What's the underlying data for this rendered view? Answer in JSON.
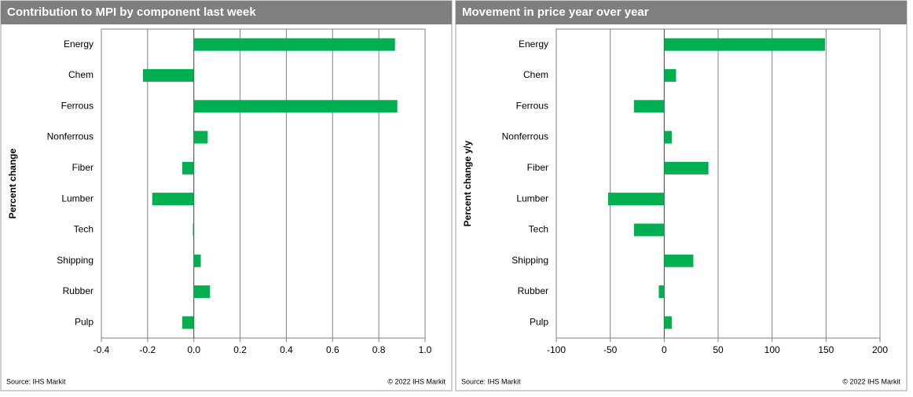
{
  "chart_data": [
    {
      "type": "bar",
      "title": "Contribution to MPI by component last week",
      "y_label": "Percent change",
      "categories": [
        "Energy",
        "Chem",
        "Ferrous",
        "Nonferrous",
        "Fiber",
        "Lumber",
        "Tech",
        "Shipping",
        "Rubber",
        "Pulp"
      ],
      "values": [
        0.87,
        -0.22,
        0.88,
        0.06,
        -0.05,
        -0.18,
        -0.004,
        0.03,
        0.07,
        -0.05
      ],
      "color": "#00b050",
      "xlim": [
        -0.4,
        1.0
      ],
      "xticks": [
        -0.4,
        -0.2,
        {
          "value": 0,
          "label": "0.0"
        },
        0.2,
        0.4,
        0.6,
        0.8,
        {
          "value": 1,
          "label": "1.0"
        }
      ],
      "grid": true,
      "source": "Source:  IHS Markit",
      "copyright": "© 2022  IHS Markit"
    },
    {
      "type": "bar",
      "title": "Movement in price year over year",
      "y_label": "Percent change y/y",
      "categories": [
        "Energy",
        "Chem",
        "Ferrous",
        "Nonferrous",
        "Fiber",
        "Lumber",
        "Tech",
        "Shipping",
        "Rubber",
        "Pulp"
      ],
      "values": [
        149,
        11,
        -28,
        7,
        41,
        -52,
        -28,
        27,
        -5,
        7
      ],
      "color": "#00b050",
      "xlim": [
        -100,
        200
      ],
      "xticks": [
        -100,
        -50,
        0,
        50,
        100,
        150,
        200
      ],
      "grid": true,
      "source": "Source:  IHS Markit",
      "copyright": "© 2022  IHS Markit"
    }
  ]
}
